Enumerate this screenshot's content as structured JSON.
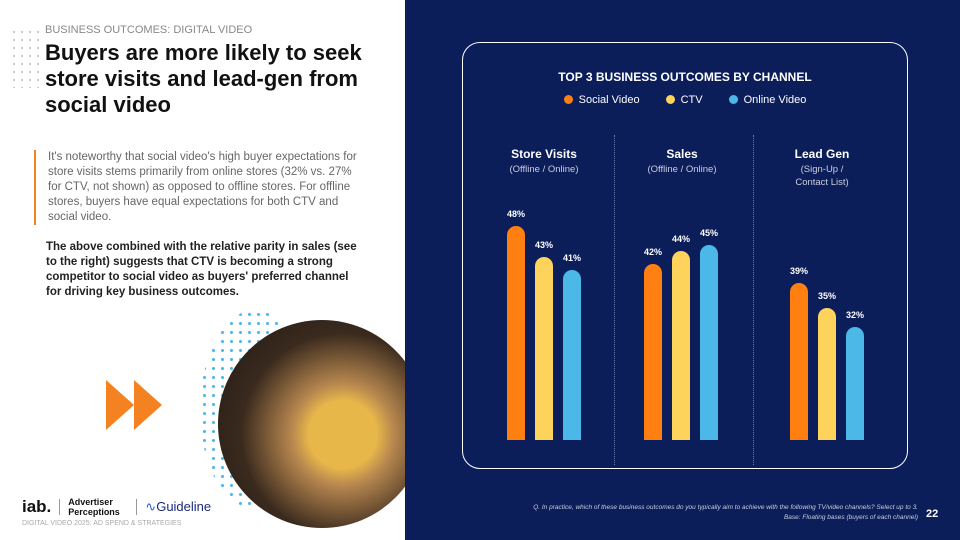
{
  "eyebrow": "BUSINESS OUTCOMES: DIGITAL VIDEO",
  "title": "Buyers are more likely to seek store visits and lead-gen from social video",
  "body": "It's noteworthy that social video's high buyer expectations for store visits stems primarily from online stores (32% vs. 27% for CTV, not shown) as opposed to offline stores. For offline stores, buyers have equal expectations for both CTV and social video.",
  "body_bold": "The above combined with the relative parity in sales (see to the right) suggests that CTV is becoming a strong competitor to social video as buyers' preferred channel for driving key business outcomes.",
  "logos": {
    "iab": "iab.",
    "ap": "Advertiser Perceptions",
    "guideline": "Guideline"
  },
  "footer": "DIGITAL VIDEO 2025: AD SPEND & STRATEGIES",
  "question": "Q. In practice, which of these business outcomes do you typically aim to achieve with the following TV/video channels? Select up to 3.",
  "base": "Base: Floating bases (buyers of each channel)",
  "page_number": "22",
  "chart_data": {
    "type": "bar",
    "title": "TOP 3 BUSINESS OUTCOMES BY CHANNEL",
    "categories": [
      {
        "name": "Store Visits",
        "sub": "(Offline / Online)"
      },
      {
        "name": "Sales",
        "sub": "(Offline / Online)"
      },
      {
        "name": "Lead Gen",
        "sub": "(Sign-Up / Contact List)"
      }
    ],
    "series": [
      {
        "name": "Social Video",
        "color": "#ff7f11",
        "values": [
          48,
          42,
          39
        ]
      },
      {
        "name": "CTV",
        "color": "#fdd35c",
        "values": [
          43,
          44,
          35
        ]
      },
      {
        "name": "Online Video",
        "color": "#4cb8e8",
        "values": [
          41,
          45,
          32
        ]
      }
    ],
    "unit": "%"
  }
}
